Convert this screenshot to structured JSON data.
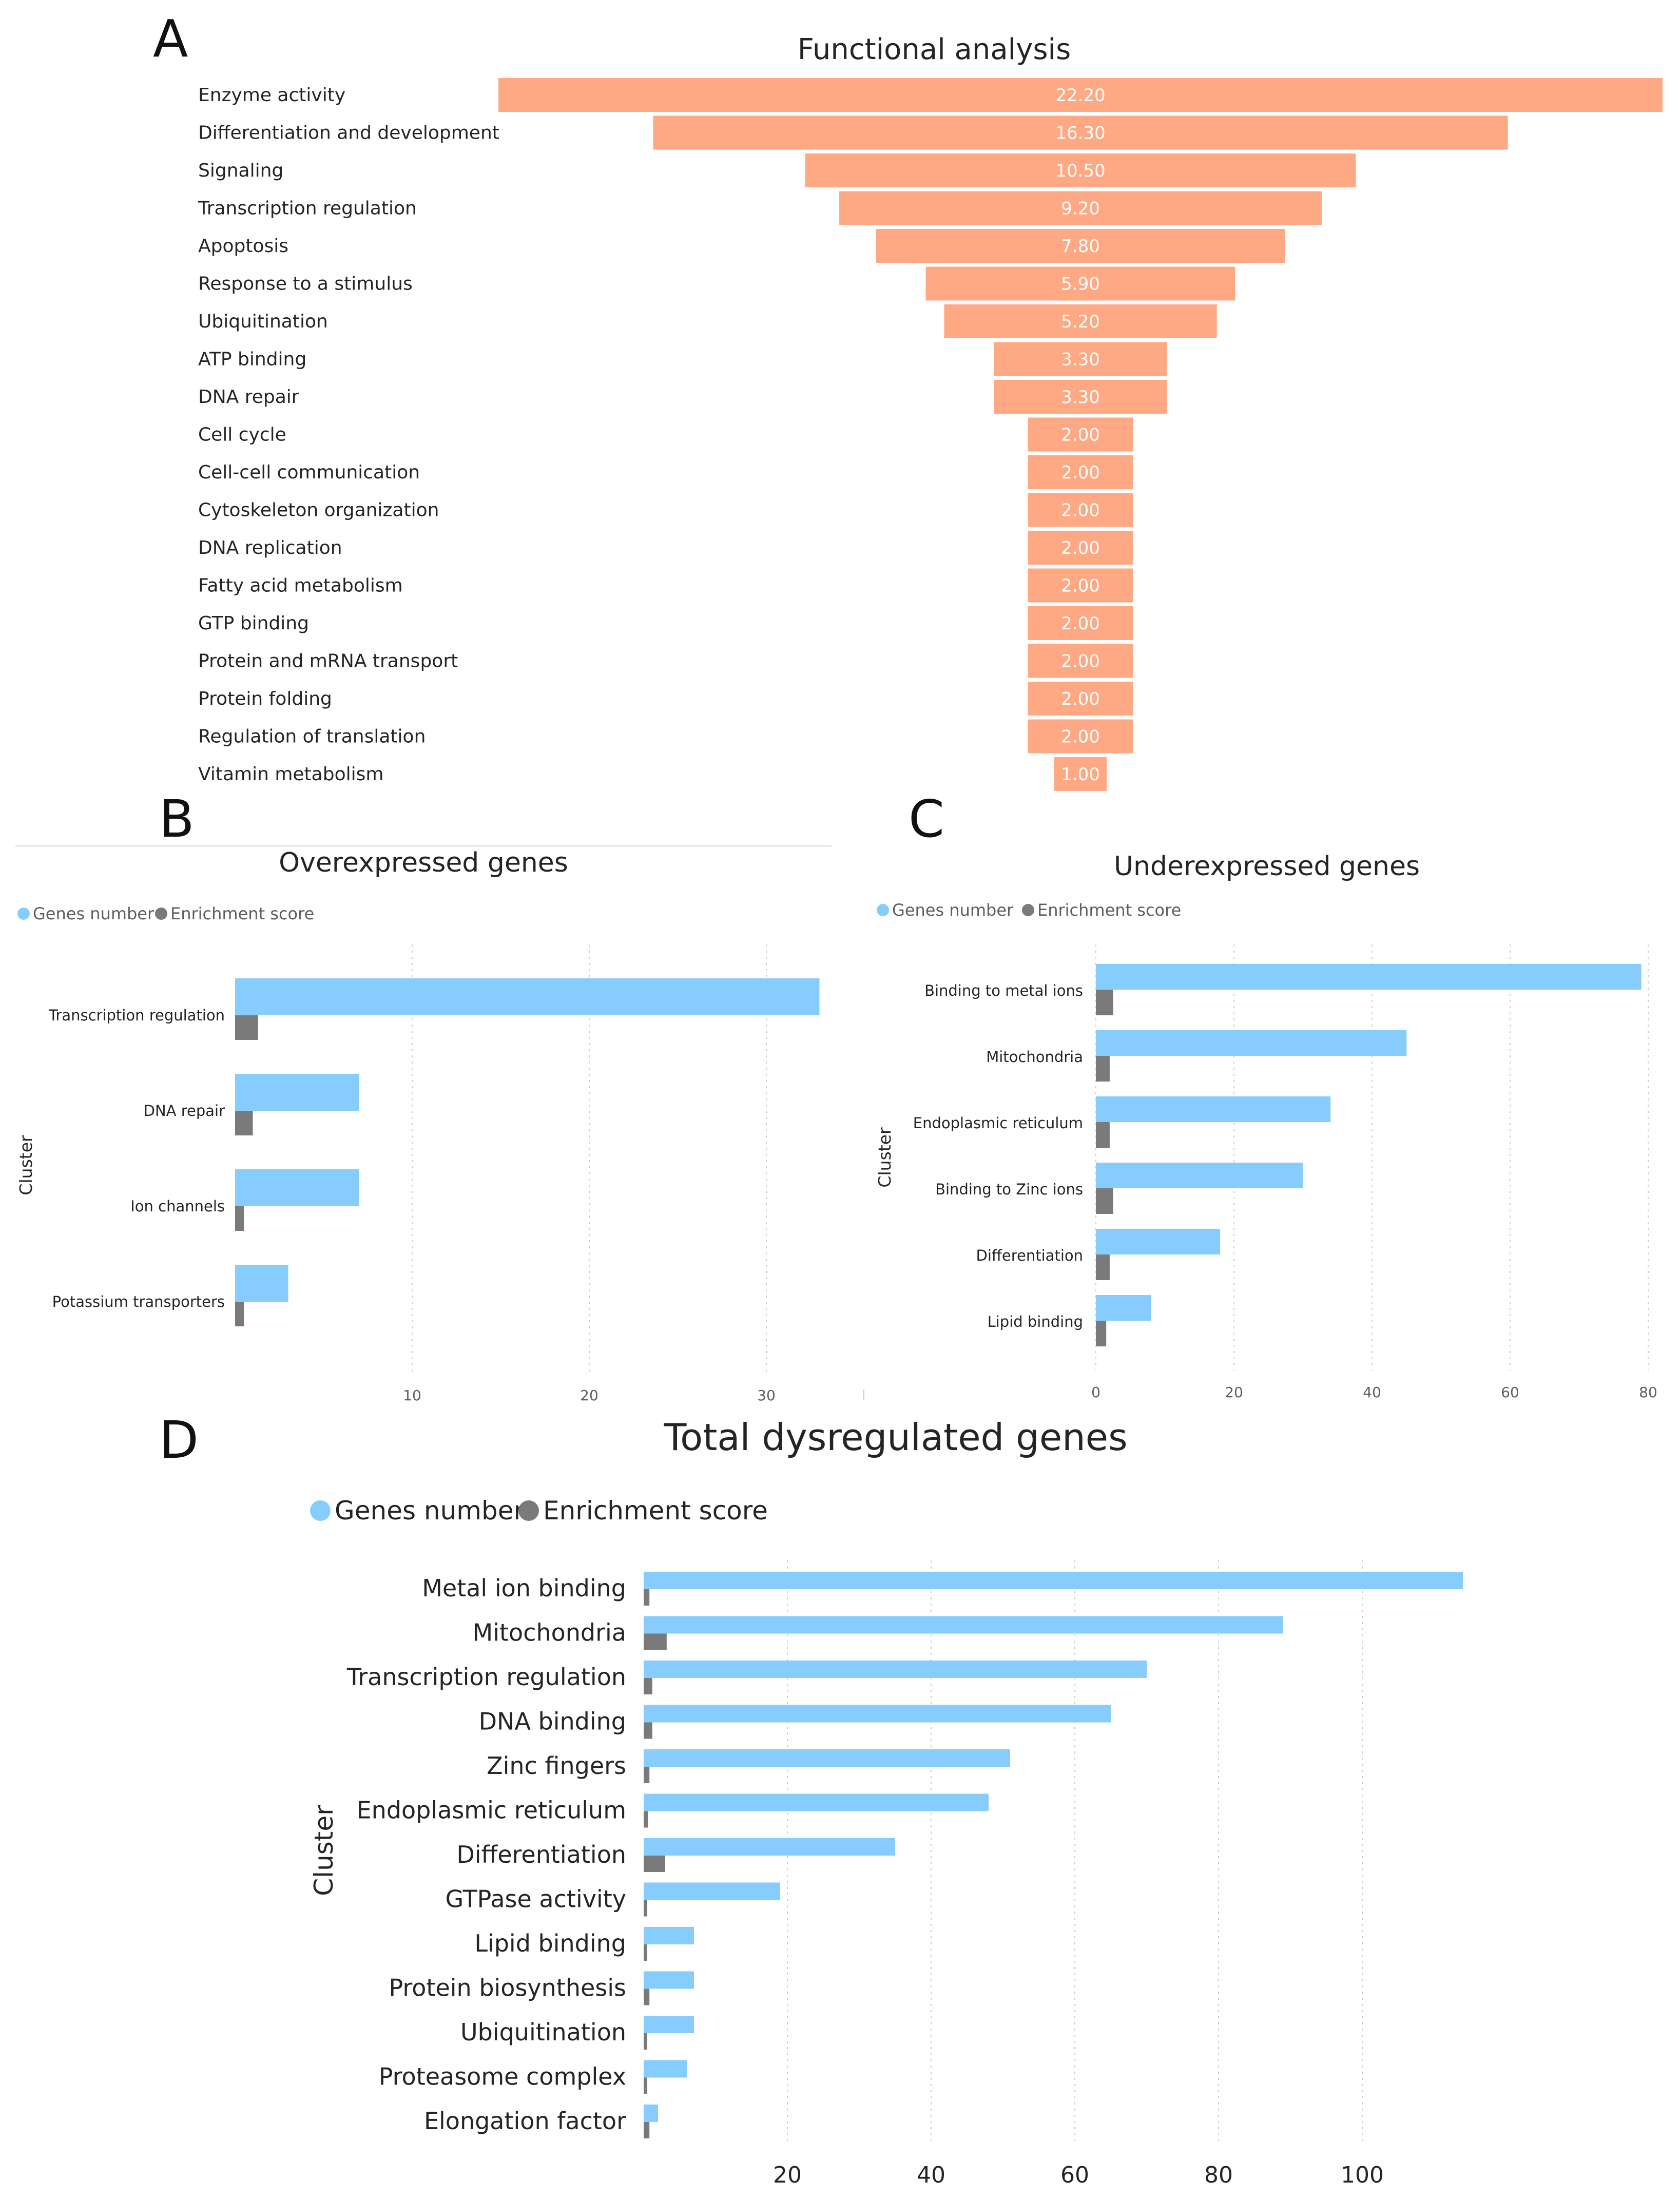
{
  "panels": {
    "a": "A",
    "b": "B",
    "c": "C",
    "d": "D"
  },
  "colors": {
    "funnel": "#ffa984",
    "genes": "#86cdfd",
    "enrichment": "#7a7a7a",
    "grid": "#cccccc"
  },
  "chart_data": [
    {
      "id": "A",
      "type": "bar",
      "variant": "funnel",
      "title": "Functional analysis",
      "categories": [
        "Enzyme activity",
        "Differentiation and development",
        "Signaling",
        "Transcription regulation",
        "Apoptosis",
        "Response to a stimulus",
        "Ubiquitination",
        "ATP binding",
        "DNA repair",
        "Cell cycle",
        "Cell-cell communication",
        "Cytoskeleton organization",
        "DNA replication",
        "Fatty acid metabolism",
        "GTP binding",
        "Protein and mRNA transport",
        "Protein folding",
        "Regulation of translation",
        "Vitamin metabolism"
      ],
      "values": [
        22.2,
        16.3,
        10.5,
        9.2,
        7.8,
        5.9,
        5.2,
        3.3,
        3.3,
        2.0,
        2.0,
        2.0,
        2.0,
        2.0,
        2.0,
        2.0,
        2.0,
        2.0,
        1.0
      ],
      "value_labels": [
        "22.20",
        "16.30",
        "10.50",
        "9.20",
        "7.80",
        "5.90",
        "5.20",
        "3.30",
        "3.30",
        "2.00",
        "2.00",
        "2.00",
        "2.00",
        "2.00",
        "2.00",
        "2.00",
        "2.00",
        "2.00",
        "1.00"
      ]
    },
    {
      "id": "B",
      "type": "bar",
      "orientation": "horizontal",
      "title": "Overexpressed genes",
      "ylabel": "Cluster",
      "xlabel": "",
      "legend": [
        "Genes number",
        "Enrichment score"
      ],
      "categories": [
        "Transcription regulation",
        "DNA repair",
        "Ion channels",
        "Potassium transporters"
      ],
      "series": [
        {
          "name": "Genes number",
          "values": [
            33,
            7,
            7,
            3
          ]
        },
        {
          "name": "Enrichment score",
          "values": [
            1.3,
            1.0,
            0.5,
            0.5
          ]
        }
      ],
      "xlim": [
        0,
        35
      ],
      "xticks": [
        10,
        20,
        30
      ],
      "grid": true
    },
    {
      "id": "C",
      "type": "bar",
      "orientation": "horizontal",
      "title": "Underexpressed genes",
      "ylabel": "Cluster",
      "xlabel": "",
      "legend": [
        "Genes number",
        "Enrichment score"
      ],
      "categories": [
        "Binding to metal ions",
        "Mitochondria",
        "Endoplasmic reticulum",
        "Binding to Zinc ions",
        "Differentiation",
        "Lipid binding"
      ],
      "series": [
        {
          "name": "Genes number",
          "values": [
            79,
            45,
            34,
            30,
            18,
            8
          ]
        },
        {
          "name": "Enrichment score",
          "values": [
            2.5,
            2.0,
            2.0,
            2.5,
            2.0,
            1.5
          ]
        }
      ],
      "xlim": [
        0,
        80
      ],
      "xticks": [
        0,
        20,
        40,
        60,
        80
      ],
      "grid": true
    },
    {
      "id": "D",
      "type": "bar",
      "orientation": "horizontal",
      "title": "Total dysregulated genes",
      "ylabel": "Cluster",
      "xlabel": "",
      "legend": [
        "Genes number",
        "Enrichment score"
      ],
      "categories": [
        "Metal ion binding",
        "Mitochondria",
        "Transcription regulation",
        "DNA binding",
        "Zinc fingers",
        "Endoplasmic reticulum",
        "Differentiation",
        "GTPase activity",
        "Lipid binding",
        "Protein biosynthesis",
        "Ubiquitination",
        "Proteasome complex",
        "Elongation factor"
      ],
      "series": [
        {
          "name": "Genes number",
          "values": [
            114,
            89,
            70,
            65,
            51,
            48,
            35,
            19,
            7,
            7,
            7,
            6,
            2
          ]
        },
        {
          "name": "Enrichment score",
          "values": [
            0.8,
            3.2,
            1.2,
            1.2,
            0.8,
            0.6,
            3.0,
            0.5,
            0.5,
            0.8,
            0.5,
            0.5,
            0.8
          ]
        }
      ],
      "xlim": [
        0,
        120
      ],
      "xticks": [
        20,
        40,
        60,
        80,
        100
      ],
      "grid": true
    }
  ]
}
